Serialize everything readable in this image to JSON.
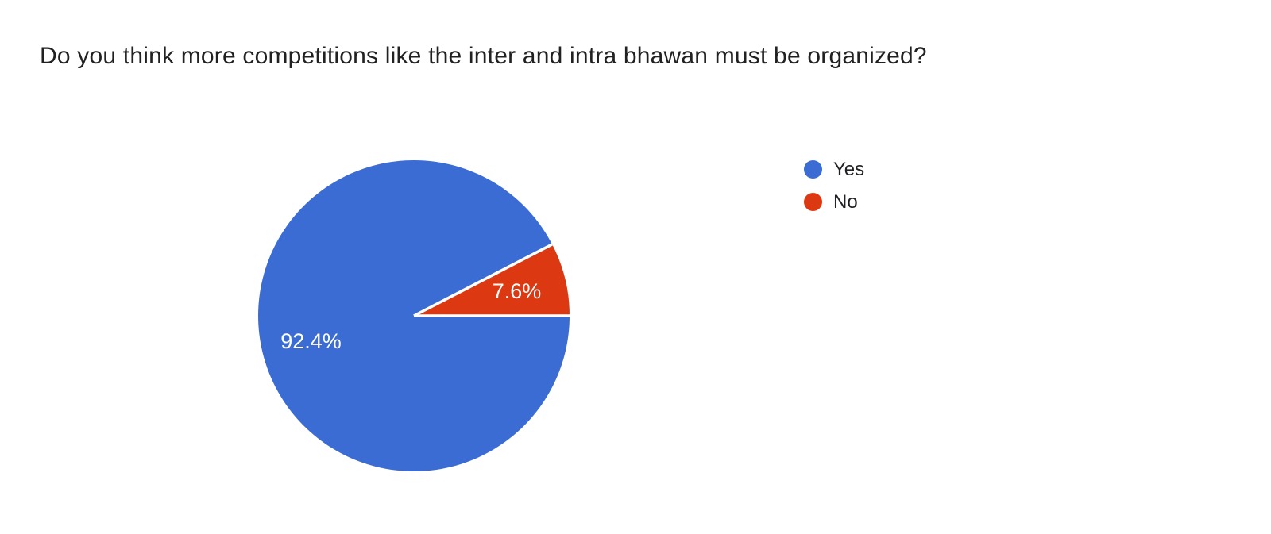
{
  "title": {
    "text": "Do you think more competitions like the inter and intra bhawan must be organized?"
  },
  "chart_data": {
    "type": "pie",
    "title": "Do you think more competitions like the inter and intra bhawan must be organized?",
    "labels": [
      "Yes",
      "No"
    ],
    "values": [
      92.4,
      7.6
    ],
    "display_labels": [
      "92.4%",
      "7.6%"
    ],
    "colors": [
      "#3b6cd4",
      "#dc3912"
    ],
    "slice_label_color": "#ffffff",
    "separator_color": "#ffffff",
    "start_angle_deg": 0,
    "direction": "clockwise",
    "legend": {
      "position": "right",
      "entries": [
        "Yes",
        "No"
      ]
    }
  },
  "style": {
    "background": "#ffffff",
    "title_color": "#212121",
    "legend_text_color": "#202124"
  }
}
